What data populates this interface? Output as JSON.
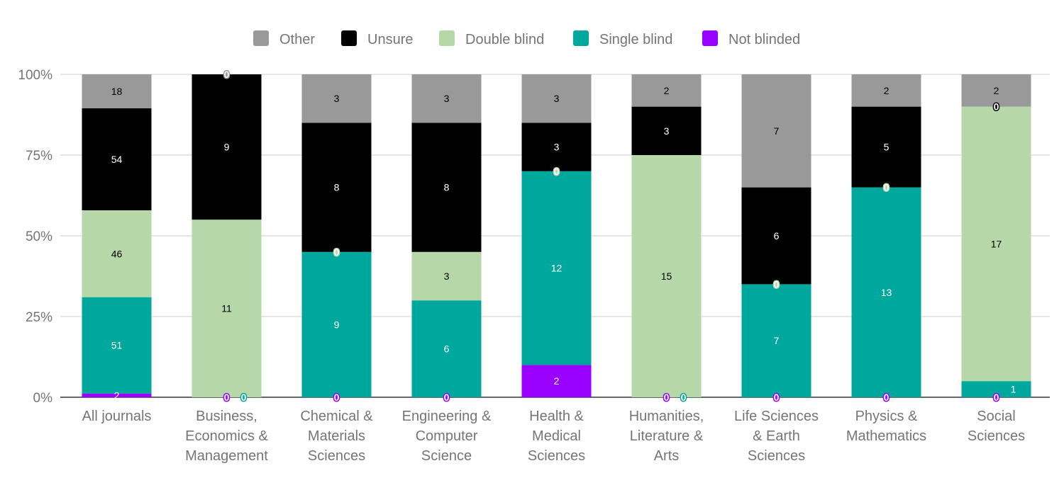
{
  "chart_data": {
    "type": "bar",
    "stacked": "percent",
    "categories": [
      [
        "All journals"
      ],
      [
        "Business,",
        "Economics &",
        "Management"
      ],
      [
        "Chemical &",
        "Materials",
        "Sciences"
      ],
      [
        "Engineering &",
        "Computer",
        "Science"
      ],
      [
        "Health &",
        "Medical",
        "Sciences"
      ],
      [
        "Humanities,",
        "Literature &",
        "Arts"
      ],
      [
        "Life Sciences",
        "& Earth",
        "Sciences"
      ],
      [
        "Physics &",
        "Mathematics"
      ],
      [
        "Social",
        "Sciences"
      ]
    ],
    "series": [
      {
        "name": "Not blinded",
        "color": "#9900ff",
        "label_color": "#ffffff",
        "values": [
          2,
          0,
          0,
          0,
          2,
          0,
          0,
          0,
          0
        ]
      },
      {
        "name": "Single blind",
        "color": "#00a79d",
        "label_color": "#ffffff",
        "values": [
          51,
          0,
          9,
          6,
          12,
          0,
          7,
          13,
          1
        ]
      },
      {
        "name": "Double blind",
        "color": "#b6d7a8",
        "label_color": "#000000",
        "values": [
          46,
          11,
          0,
          3,
          0,
          15,
          0,
          0,
          17
        ]
      },
      {
        "name": "Unsure",
        "color": "#000000",
        "label_color": "#ffffff",
        "values": [
          54,
          9,
          8,
          8,
          3,
          3,
          6,
          5,
          0
        ]
      },
      {
        "name": "Other",
        "color": "#999999",
        "label_color": "#000000",
        "values": [
          18,
          0,
          3,
          3,
          3,
          2,
          7,
          2,
          2
        ]
      }
    ],
    "legend_order": [
      "Other",
      "Unsure",
      "Double blind",
      "Single blind",
      "Not blinded"
    ],
    "legend_position": "top",
    "y_ticks": [
      "0%",
      "25%",
      "50%",
      "75%",
      "100%"
    ],
    "ylim": [
      0,
      100
    ],
    "grid": true,
    "data_labels": true
  }
}
